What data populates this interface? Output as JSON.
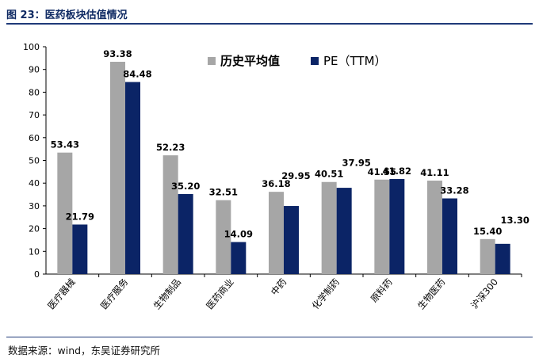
{
  "figure": {
    "title": "图 23：医药板块估值情况",
    "source": "数据来源：wind，东吴证券研究所"
  },
  "chart_data": {
    "type": "bar",
    "categories": [
      "医疗器械",
      "医疗服务",
      "生物制品",
      "医药商业",
      "中药",
      "化学制药",
      "原料药",
      "生物医药",
      "沪深300"
    ],
    "series": [
      {
        "name": "历史平均值",
        "color": "#a6a6a6",
        "values": [
          53.43,
          93.38,
          52.23,
          32.51,
          36.18,
          40.51,
          41.55,
          41.11,
          15.4
        ],
        "labels": [
          "53.43",
          "93.38",
          "52.23",
          "32.51",
          "36.18",
          "40.51",
          "41.55",
          "41.11",
          "15.40"
        ]
      },
      {
        "name": "PE（TTM）",
        "color": "#0b2466",
        "values": [
          21.79,
          84.48,
          35.2,
          14.09,
          29.95,
          37.95,
          41.82,
          33.28,
          13.3
        ],
        "labels": [
          "21.79",
          "84.48",
          "35.20",
          "14.09",
          "29.95",
          "37.95",
          "41.82",
          "33.28",
          "13.30"
        ]
      }
    ],
    "ylim": [
      0,
      100
    ],
    "yticks": [
      "0",
      "10",
      "20",
      "30",
      "40",
      "50",
      "60",
      "70",
      "80",
      "90",
      "100"
    ],
    "grid": false,
    "legend_position": "top-right"
  }
}
